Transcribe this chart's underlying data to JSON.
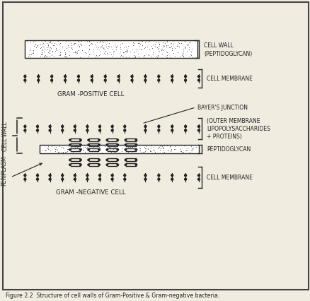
{
  "title": "Figure 2.2  Structure of cell walls of Gram-Positive & Gram-negative bacteria.",
  "bg_color": "#f0ece0",
  "border_color": "#333333",
  "gram_positive_label": "GRAM -POSITIVE CELL",
  "gram_negative_label": "GRAM -NEGATIVE CELL",
  "cell_wall_label": "CELL WALL\n(PEPTIDOGLYCAN)",
  "cell_membrane_label_top": "CELL MEMBRANE",
  "bayers_junction_label": "BAYER'S JUNCTION",
  "outer_membrane_label": "(OUTER MEMBRANE\nLIPOPOLYSACCHARIDES\n+ PROTEINS)",
  "peptidoglycan_label": "PEPTIDOGLYCAN",
  "cell_membrane_label_bot": "CELL MEMBRANE",
  "cell_wall_side_label": "CELL WALL",
  "periplasm_label": "PERIPLASM"
}
